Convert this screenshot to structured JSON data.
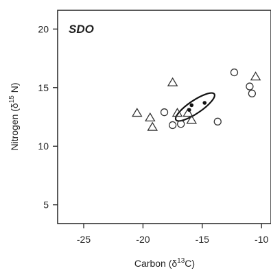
{
  "chart_data": {
    "type": "scatter",
    "title": "SDO",
    "xlabel": "Carbon (δ¹³C)",
    "xlabel_parts": {
      "base": "Carbon (δ",
      "sup": "13",
      "tail": "C)"
    },
    "ylabel": "Nitrogen (δ¹⁵N)",
    "ylabel_parts": {
      "base": "Nitrogen (δ",
      "sup": "15",
      "tail": " N)"
    },
    "xlim": [
      -27.2,
      -9.2
    ],
    "ylim": [
      3.4,
      21.6
    ],
    "xticks": [
      -25,
      -20,
      -15,
      -10
    ],
    "xtick_labels": [
      "-25",
      "-20",
      "-15",
      "-10"
    ],
    "yticks": [
      5,
      10,
      15,
      20
    ],
    "ytick_labels": [
      "5",
      "10",
      "15",
      "20"
    ],
    "grid": false,
    "series": [
      {
        "marker": "triangle",
        "points": [
          {
            "x": -20.5,
            "y": 12.8
          },
          {
            "x": -19.4,
            "y": 12.4
          },
          {
            "x": -19.2,
            "y": 11.6
          },
          {
            "x": -17.5,
            "y": 15.4
          },
          {
            "x": -17.1,
            "y": 12.8
          },
          {
            "x": -16.2,
            "y": 12.8
          },
          {
            "x": -15.9,
            "y": 12.2
          },
          {
            "x": -10.5,
            "y": 15.9
          }
        ]
      },
      {
        "marker": "circle",
        "points": [
          {
            "x": -18.2,
            "y": 12.9
          },
          {
            "x": -17.5,
            "y": 11.8
          },
          {
            "x": -16.8,
            "y": 11.9
          },
          {
            "x": -13.7,
            "y": 12.1
          },
          {
            "x": -12.3,
            "y": 16.3
          },
          {
            "x": -11.0,
            "y": 15.1
          },
          {
            "x": -10.8,
            "y": 14.5
          }
        ]
      },
      {
        "marker": "dot",
        "points": [
          {
            "x": -16.1,
            "y": 13.1
          },
          {
            "x": -15.9,
            "y": 13.5
          },
          {
            "x": -14.8,
            "y": 13.7
          }
        ]
      }
    ],
    "ellipse": {
      "cx": -15.6,
      "cy": 13.35,
      "rx": 1.95,
      "ry": 0.55,
      "angle_deg": 34
    }
  }
}
